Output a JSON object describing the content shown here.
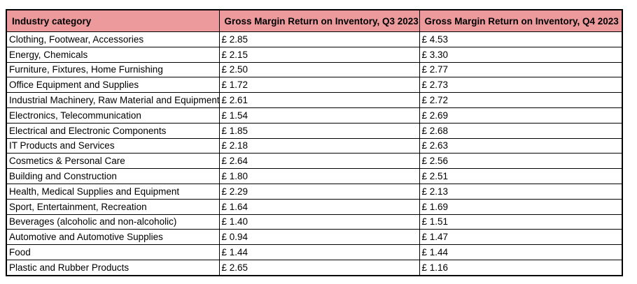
{
  "colors": {
    "header_bg": "#ec9a9c",
    "border": "#000000",
    "text": "#000000",
    "page_bg": "#ffffff"
  },
  "table": {
    "columns": [
      "Industry category",
      "Gross Margin Return on Inventory, Q3 2023",
      "Gross Margin Return on Inventory, Q4 2023"
    ],
    "rows": [
      {
        "category": "Clothing, Footwear, Accessories",
        "q3": "£ 2.85",
        "q4": "£ 4.53"
      },
      {
        "category": "Energy, Chemicals",
        "q3": "£ 2.15",
        "q4": "£ 3.30"
      },
      {
        "category": "Furniture, Fixtures, Home Furnishing",
        "q3": "£ 2.50",
        "q4": "£ 2.77"
      },
      {
        "category": "Office Equipment and Supplies",
        "q3": "£ 1.72",
        "q4": "£ 2.73"
      },
      {
        "category": "Industrial Machinery, Raw Material and Equipment",
        "q3": "£ 2.61",
        "q4": "£ 2.72"
      },
      {
        "category": "Electronics, Telecommunication",
        "q3": "£ 1.54",
        "q4": "£ 2.69"
      },
      {
        "category": "Electrical and Electronic Components",
        "q3": "£ 1.85",
        "q4": "£ 2.68"
      },
      {
        "category": "IT Products and Services",
        "q3": "£ 2.18",
        "q4": "£ 2.63"
      },
      {
        "category": "Cosmetics & Personal Care",
        "q3": "£ 2.64",
        "q4": "£ 2.56"
      },
      {
        "category": "Building and Construction",
        "q3": "£ 1.80",
        "q4": "£ 2.51"
      },
      {
        "category": "Health, Medical Supplies and Equipment",
        "q3": "£ 2.29",
        "q4": "£ 2.13"
      },
      {
        "category": "Sport, Entertainment, Recreation",
        "q3": "£ 1.64",
        "q4": "£ 1.69"
      },
      {
        "category": "Beverages (alcoholic and non-alcoholic)",
        "q3": "£ 1.40",
        "q4": "£ 1.51"
      },
      {
        "category": "Automotive and Automotive Supplies",
        "q3": "£ 0.94",
        "q4": "£ 1.47"
      },
      {
        "category": "Food",
        "q3": "£ 1.44",
        "q4": "£ 1.44"
      },
      {
        "category": "Plastic and Rubber Products",
        "q3": "£ 2.65",
        "q4": "£ 1.16"
      }
    ]
  },
  "chart_data": {
    "type": "table",
    "title": "",
    "currency": "£",
    "categories": [
      "Clothing, Footwear, Accessories",
      "Energy, Chemicals",
      "Furniture, Fixtures, Home Furnishing",
      "Office Equipment and Supplies",
      "Industrial Machinery, Raw Material and Equipment",
      "Electronics, Telecommunication",
      "Electrical and Electronic Components",
      "IT Products and Services",
      "Cosmetics & Personal Care",
      "Building and Construction",
      "Health, Medical Supplies and Equipment",
      "Sport, Entertainment, Recreation",
      "Beverages (alcoholic and non-alcoholic)",
      "Automotive and Automotive Supplies",
      "Food",
      "Plastic and Rubber Products"
    ],
    "series": [
      {
        "name": "Gross Margin Return on Inventory, Q3 2023",
        "values": [
          2.85,
          2.15,
          2.5,
          1.72,
          2.61,
          1.54,
          1.85,
          2.18,
          2.64,
          1.8,
          2.29,
          1.64,
          1.4,
          0.94,
          1.44,
          2.65
        ]
      },
      {
        "name": "Gross Margin Return on Inventory, Q4 2023",
        "values": [
          4.53,
          3.3,
          2.77,
          2.73,
          2.72,
          2.69,
          2.68,
          2.63,
          2.56,
          2.51,
          2.13,
          1.69,
          1.51,
          1.47,
          1.44,
          1.16
        ]
      }
    ]
  }
}
